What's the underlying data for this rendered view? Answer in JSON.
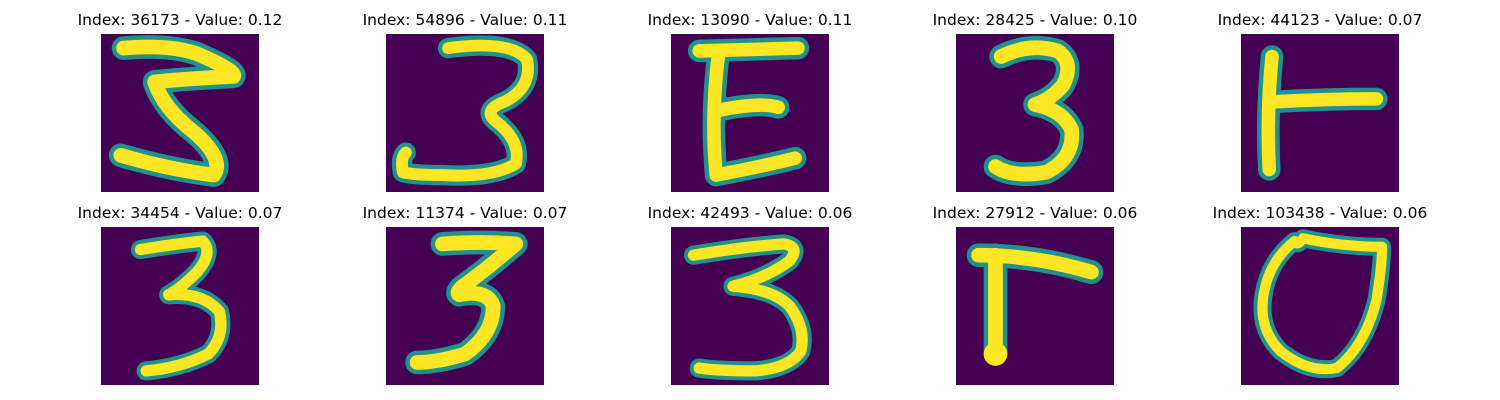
{
  "colors": {
    "background": "#440154",
    "stroke_core": "#fde725",
    "stroke_mid": "#21918c",
    "stroke_edge": "#3b528b"
  },
  "panels": [
    {
      "index": "36173",
      "value": "0.12",
      "label": "Index: 36173 - Value: 0.12",
      "glyph": "3-flat-top"
    },
    {
      "index": "54896",
      "value": "0.11",
      "label": "Index: 54896 - Value: 0.11",
      "glyph": "3-hook"
    },
    {
      "index": "13090",
      "value": "0.11",
      "label": "Index: 13090 - Value: 0.11",
      "glyph": "E"
    },
    {
      "index": "28425",
      "value": "0.10",
      "label": "Index: 28425 - Value: 0.10",
      "glyph": "3-round"
    },
    {
      "index": "44123",
      "value": "0.07",
      "label": "Index: 44123 - Value: 0.07",
      "glyph": "T-side"
    },
    {
      "index": "34454",
      "value": "0.07",
      "label": "Index: 34454 - Value: 0.07",
      "glyph": "3-thin"
    },
    {
      "index": "11374",
      "value": "0.07",
      "label": "Index: 11374 - Value: 0.07",
      "glyph": "3-slant"
    },
    {
      "index": "42493",
      "value": "0.06",
      "label": "Index: 42493 - Value: 0.06",
      "glyph": "3-wide"
    },
    {
      "index": "27912",
      "value": "0.06",
      "label": "Index: 27912 - Value: 0.06",
      "glyph": "L-flipped"
    },
    {
      "index": "103438",
      "value": "0.06",
      "label": "Index: 103438 - Value: 0.06",
      "glyph": "O-shield"
    }
  ]
}
